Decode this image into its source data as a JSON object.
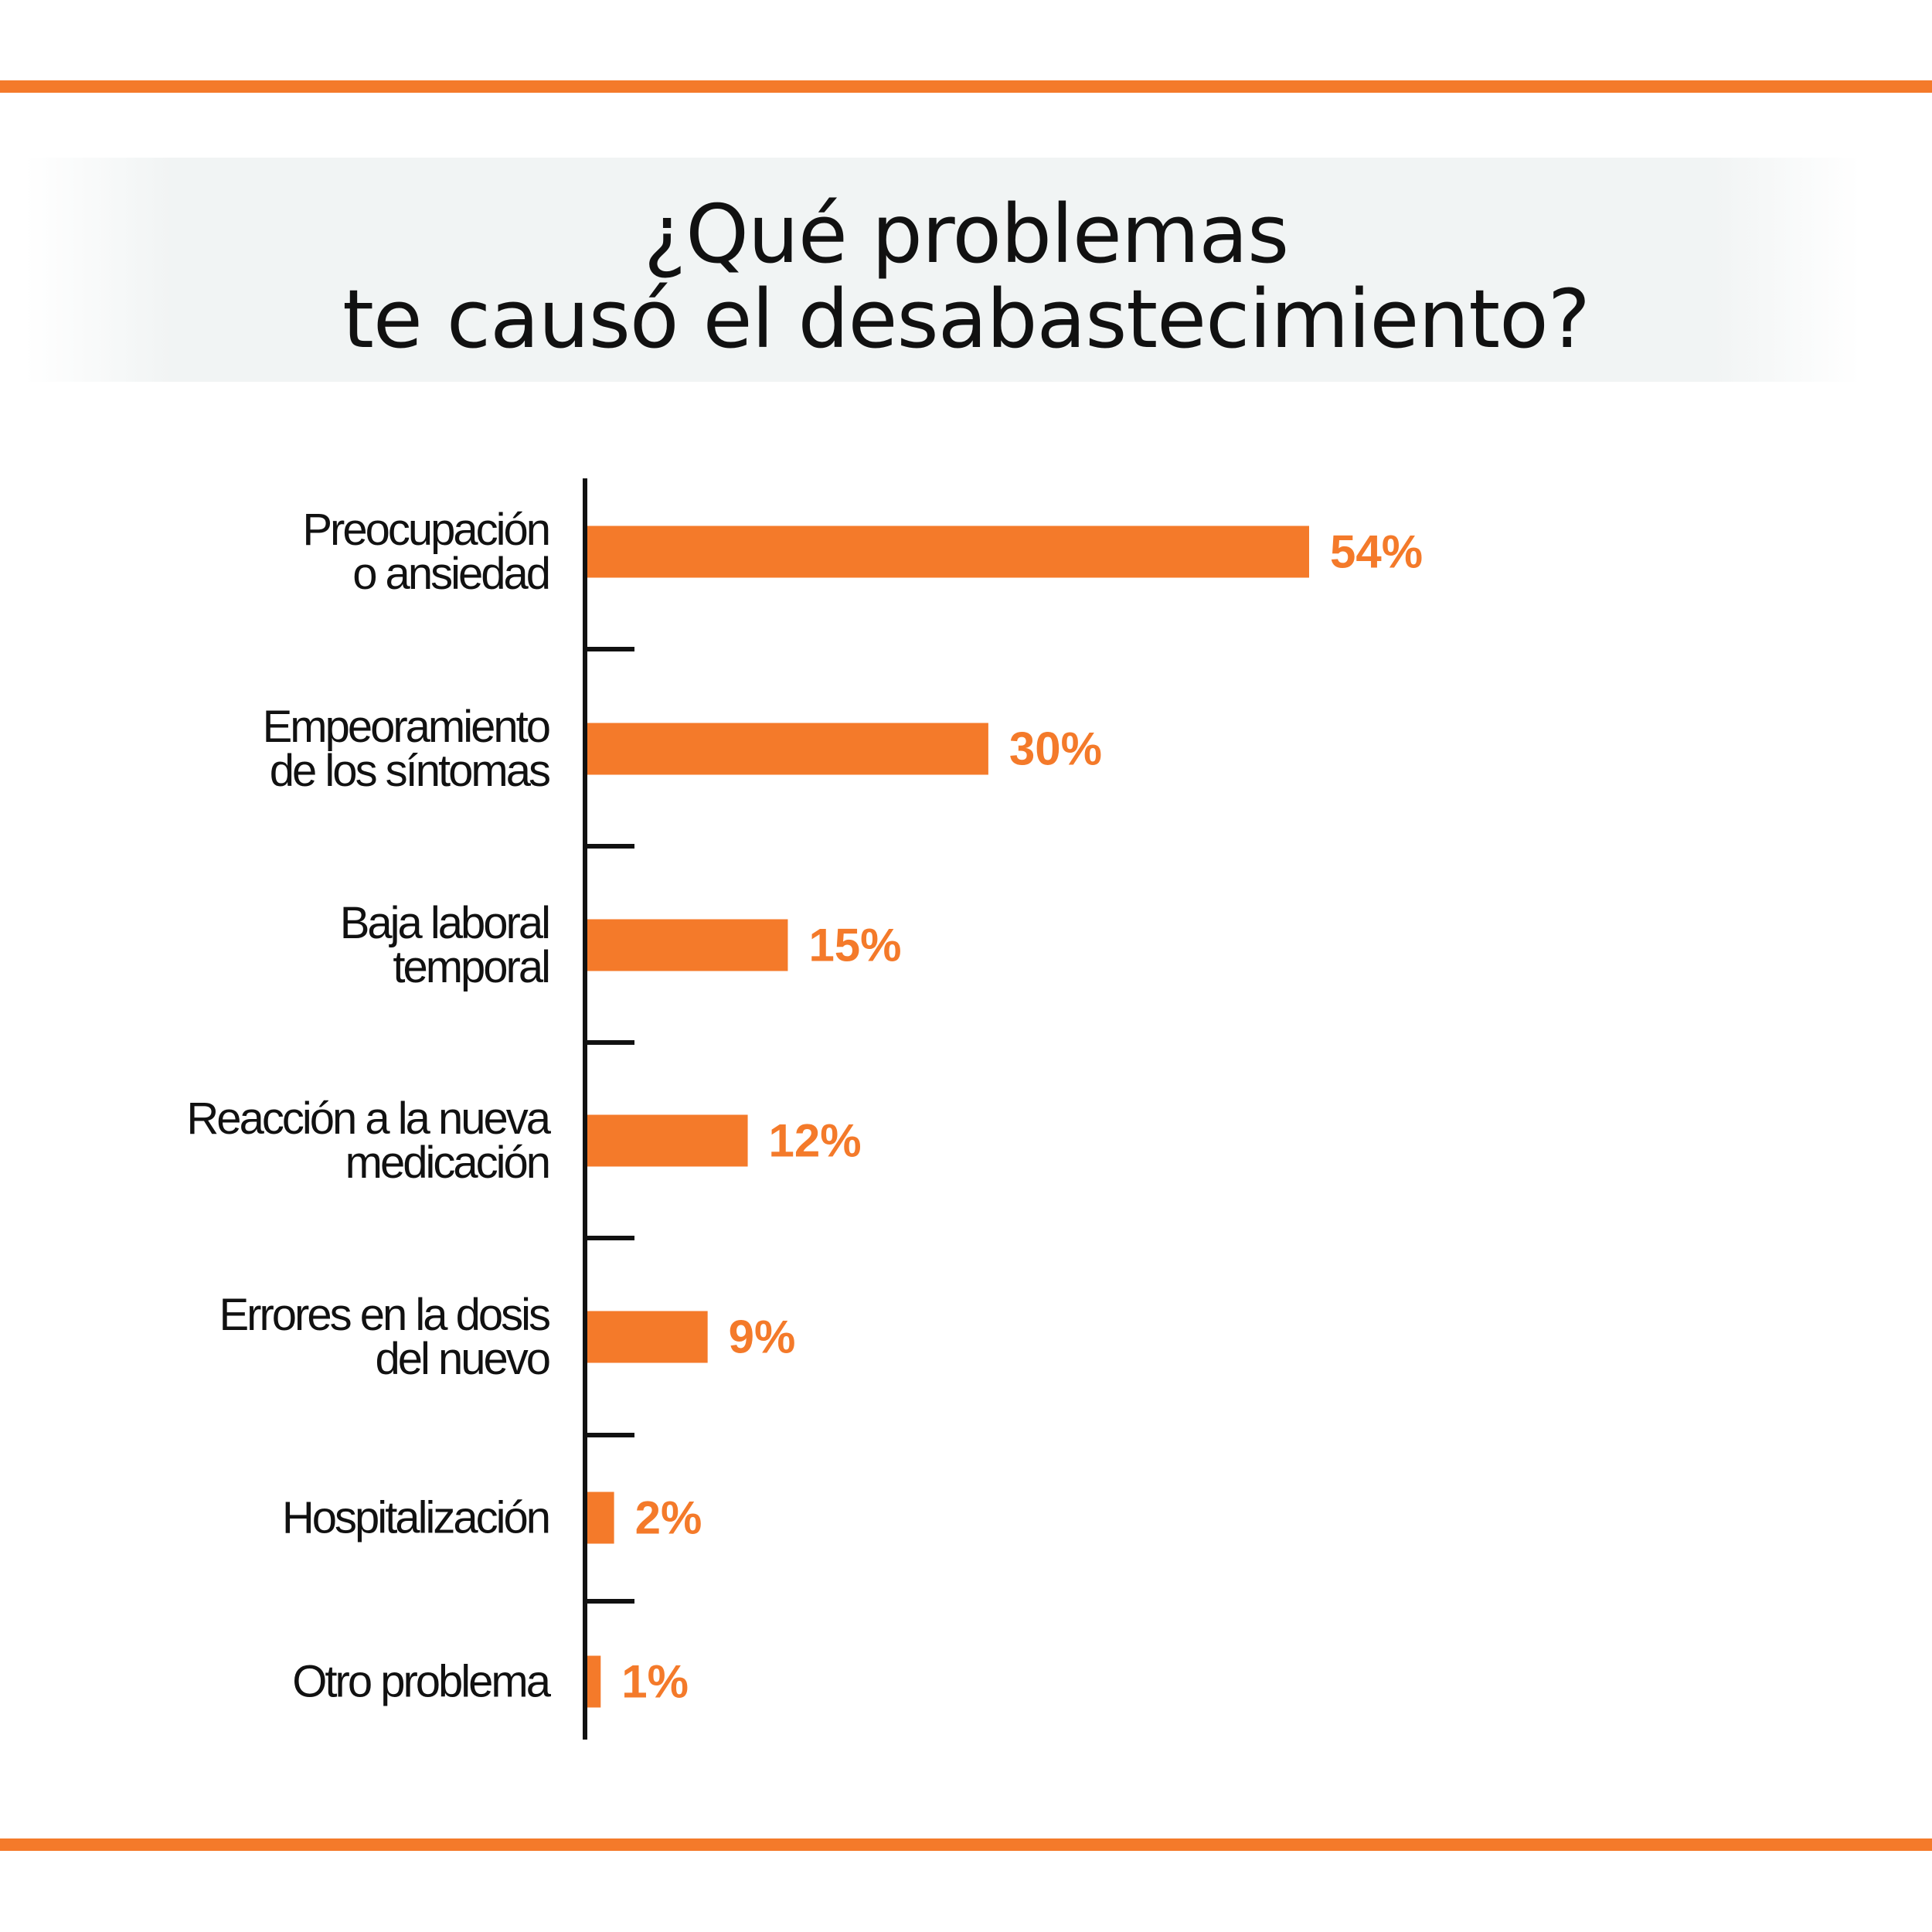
{
  "chart_data": {
    "type": "bar",
    "orientation": "horizontal",
    "title": "¿Qué problemas\nte causó el desabastecimiento?",
    "categories": [
      "Preocupación\no ansiedad",
      "Empeoramiento\nde los síntomas",
      "Baja laboral\ntemporal",
      "Reacción a la nueva\nmedicación",
      "Errores en la dosis\ndel nuevo",
      "Hospitalización",
      "Otro problema"
    ],
    "values": [
      54,
      30,
      15,
      12,
      9,
      2,
      1
    ],
    "value_labels": [
      "54%",
      "30%",
      "15%",
      "12%",
      "9%",
      "2%",
      "1%"
    ],
    "color": "#f47a2a"
  }
}
